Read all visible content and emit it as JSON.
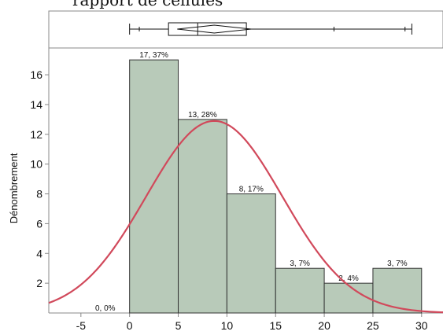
{
  "header": {
    "clipped_title": "rapport de cellules"
  },
  "chart_data": {
    "type": "bar",
    "ylabel": "Dénombrement",
    "xlabel": "",
    "xlim": [
      -8.3,
      32.2
    ],
    "ylim": [
      0,
      17.8
    ],
    "x_ticks": [
      "-5",
      "0",
      "5",
      "10",
      "15",
      "20",
      "25",
      "30"
    ],
    "x_tick_values": [
      -5,
      0,
      5,
      10,
      15,
      20,
      25,
      30
    ],
    "y_ticks": [
      "2",
      "4",
      "6",
      "8",
      "10",
      "12",
      "14",
      "16"
    ],
    "y_tick_values": [
      2,
      4,
      6,
      8,
      10,
      12,
      14,
      16
    ],
    "bins": [
      {
        "start": -5,
        "end": 0,
        "count": 0,
        "label": "0, 0%"
      },
      {
        "start": 0,
        "end": 5,
        "count": 17,
        "label": "17, 37%"
      },
      {
        "start": 5,
        "end": 10,
        "count": 13,
        "label": "13, 28%"
      },
      {
        "start": 10,
        "end": 15,
        "count": 8,
        "label": "8, 17%"
      },
      {
        "start": 15,
        "end": 20,
        "count": 3,
        "label": "3, 7%"
      },
      {
        "start": 20,
        "end": 25,
        "count": 2,
        "label": "2, 4%"
      },
      {
        "start": 25,
        "end": 30,
        "count": 3,
        "label": "3, 7%"
      }
    ],
    "normal_curve": {
      "mean": 8.7,
      "sd": 7.0,
      "peak": 12.9
    },
    "box_plot": {
      "min": 0.0,
      "q1": 4.0,
      "median": 7.0,
      "q3": 12.0,
      "max": 29.0,
      "mean": 8.7,
      "mean_diamond_half_width": 3.8,
      "outliers_marks": [
        1.0,
        21.0,
        28.3
      ]
    },
    "colors": {
      "bar_fill": "#b8cab9",
      "bar_stroke": "#333333",
      "curve": "#d1495b",
      "axis": "#888888"
    }
  }
}
